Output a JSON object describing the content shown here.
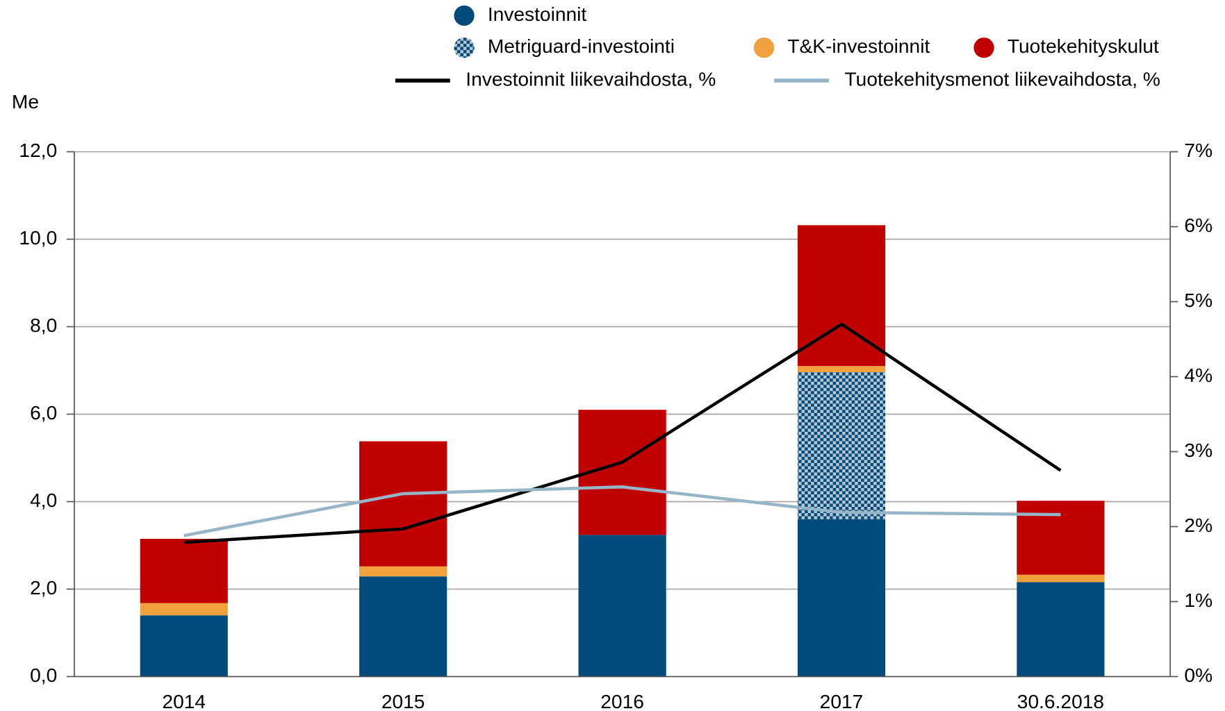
{
  "chart_data": {
    "type": "bar",
    "y_label": "Me",
    "categories": [
      "2014",
      "2015",
      "2016",
      "2017",
      "30.6.2018"
    ],
    "series": [
      {
        "name": "Investoinnit",
        "type": "bar",
        "color": "#004b7c",
        "values": [
          1.4,
          2.29,
          3.24,
          3.6,
          2.16
        ]
      },
      {
        "name": "Metriguard-investointi",
        "type": "bar",
        "color": "#004b7c",
        "pattern": "checker",
        "values": [
          0,
          0,
          0,
          3.36,
          0
        ]
      },
      {
        "name": "T&K-investoinnit",
        "type": "bar",
        "color": "#f0a03c",
        "values": [
          0.28,
          0.23,
          0,
          0.14,
          0.17
        ]
      },
      {
        "name": "Tuotekehityskulut",
        "type": "bar",
        "color": "#c00000",
        "values": [
          1.47,
          2.86,
          2.86,
          3.22,
          1.69
        ]
      },
      {
        "name": "Investoinnit liikevaihdosta, %",
        "type": "line",
        "axis": "y2",
        "color": "#000000",
        "values": [
          1.79,
          1.97,
          2.86,
          4.7,
          2.75
        ]
      },
      {
        "name": "Tuotekehitysmenot liikevaihdosta, %",
        "type": "line",
        "axis": "y2",
        "color": "#97b5c9",
        "values": [
          1.88,
          2.44,
          2.53,
          2.19,
          2.16
        ]
      }
    ],
    "stacked": true,
    "ylim": [
      0,
      12
    ],
    "yticks": [
      {
        "value": 0,
        "label": "0,0"
      },
      {
        "value": 2,
        "label": "2,0"
      },
      {
        "value": 4,
        "label": "4,0"
      },
      {
        "value": 6,
        "label": "6,0"
      },
      {
        "value": 8,
        "label": "8,0"
      },
      {
        "value": 10,
        "label": "10,0"
      },
      {
        "value": 12,
        "label": "12,0"
      }
    ],
    "y2lim": [
      0,
      7
    ],
    "y2ticks": [
      {
        "value": 0,
        "label": "0%"
      },
      {
        "value": 1,
        "label": "1%"
      },
      {
        "value": 2,
        "label": "2%"
      },
      {
        "value": 3,
        "label": "3%"
      },
      {
        "value": 4,
        "label": "4%"
      },
      {
        "value": 5,
        "label": "5%"
      },
      {
        "value": 6,
        "label": "6%"
      },
      {
        "value": 7,
        "label": "7%"
      }
    ],
    "grid": true,
    "legend": "top"
  }
}
